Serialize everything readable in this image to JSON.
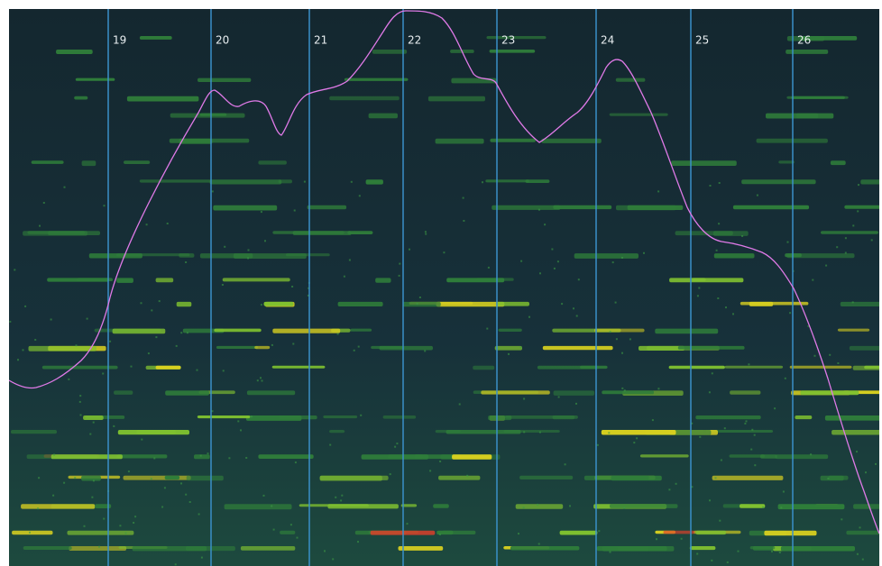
{
  "bar_markers": [
    "19",
    "20",
    "21",
    "22",
    "23",
    "24",
    "25",
    "26"
  ]
}
